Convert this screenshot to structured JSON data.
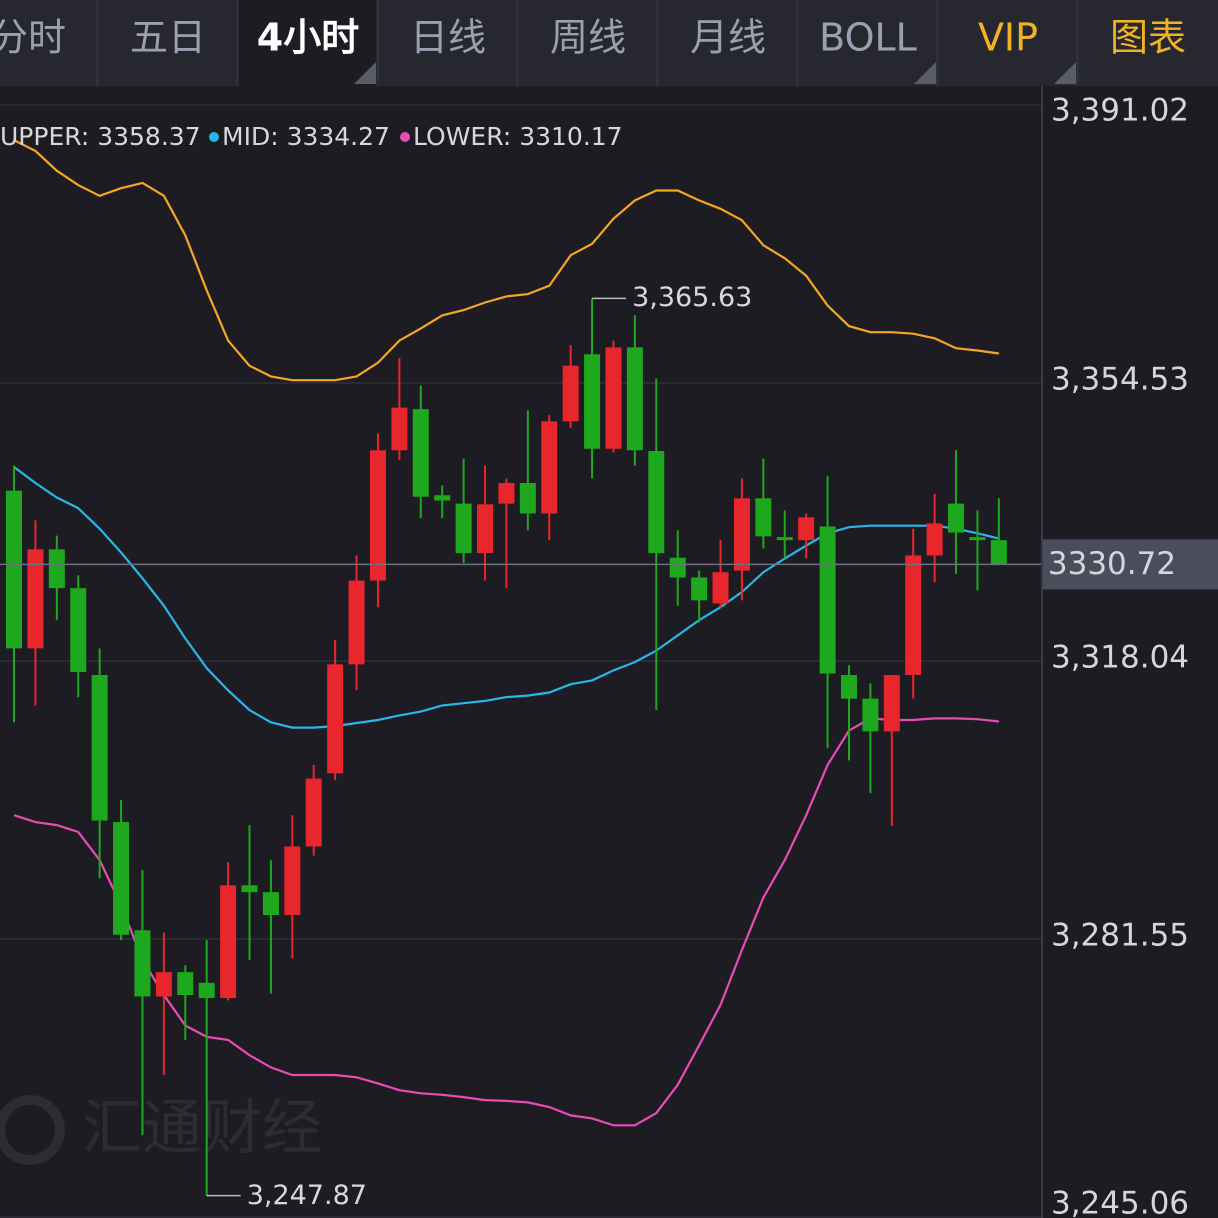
{
  "tabs": {
    "items": [
      "分时",
      "五日",
      "4小时",
      "日线",
      "周线",
      "月线",
      "BOLL",
      "VIP",
      "图表"
    ],
    "active": 2
  },
  "chart_data": {
    "type": "candlestick",
    "ylim": [
      3245.06,
      3391.02
    ],
    "yticks": [
      {
        "value": 3391.02,
        "label": "3,391.02"
      },
      {
        "value": 3354.53,
        "label": "3,354.53"
      },
      {
        "value": 3318.04,
        "label": "3,318.04"
      },
      {
        "value": 3281.55,
        "label": "3,281.55"
      },
      {
        "value": 3245.06,
        "label": "3,245.06"
      }
    ],
    "grid": true,
    "up_color": "#e8262b",
    "down_color": "#1ea81e",
    "open": [
      3340.4,
      3319.7,
      3332.7,
      3327.6,
      3316.2,
      3296.9,
      3282.7,
      3274.0,
      3277.2,
      3275.8,
      3273.8,
      3288.6,
      3287.7,
      3284.7,
      3293.7,
      3303.3,
      3317.6,
      3328.6,
      3345.7,
      3351.1,
      3339.8,
      3338.7,
      3332.2,
      3338.7,
      3341.4,
      3337.4,
      3349.5,
      3358.3,
      3345.9,
      3359.2,
      3345.6,
      3331.6,
      3329.0,
      3325.6,
      3329.9,
      3339.4,
      3334.3,
      3333.9,
      3335.7,
      3316.2,
      3313.1,
      3308.8,
      3316.2,
      3331.9,
      3338.7,
      3334.3,
      3333.9
    ],
    "high": [
      3343.7,
      3336.5,
      3334.5,
      3329.3,
      3319.7,
      3299.8,
      3290.6,
      3282.4,
      3278.1,
      3281.4,
      3291.6,
      3296.5,
      3291.9,
      3297.8,
      3304.4,
      3320.8,
      3331.9,
      3347.9,
      3357.8,
      3354.2,
      3341.1,
      3344.6,
      3343.7,
      3342.0,
      3350.9,
      3350.3,
      3359.5,
      3365.63,
      3360.1,
      3363.4,
      3355.1,
      3335.2,
      3329.9,
      3333.9,
      3342.0,
      3344.6,
      3337.8,
      3337.4,
      3342.3,
      3317.5,
      3315.1,
      3316.2,
      3335.4,
      3340.0,
      3345.7,
      3337.8,
      3339.4
    ],
    "low": [
      3310.0,
      3312.2,
      3323.4,
      3313.3,
      3289.5,
      3281.4,
      3255.8,
      3263.7,
      3268.3,
      3247.87,
      3273.5,
      3278.8,
      3274.4,
      3279.0,
      3292.5,
      3302.4,
      3314.2,
      3325.1,
      3344.4,
      3336.8,
      3336.8,
      3330.9,
      3328.6,
      3327.6,
      3335.2,
      3333.9,
      3348.6,
      3342.0,
      3345.4,
      3343.7,
      3311.6,
      3325.3,
      3323.1,
      3325.0,
      3326.0,
      3332.8,
      3331.5,
      3331.5,
      3306.6,
      3305.0,
      3300.7,
      3296.4,
      3313.1,
      3328.4,
      3329.5,
      3327.3,
      3330.6
    ],
    "close": [
      3319.7,
      3332.7,
      3327.6,
      3316.6,
      3297.1,
      3282.1,
      3274.0,
      3277.2,
      3274.2,
      3273.8,
      3288.6,
      3287.7,
      3284.7,
      3293.7,
      3302.6,
      3317.6,
      3328.6,
      3345.7,
      3351.3,
      3339.6,
      3339.1,
      3332.2,
      3338.6,
      3341.4,
      3337.4,
      3349.5,
      3356.8,
      3345.9,
      3359.2,
      3345.7,
      3332.2,
      3329.0,
      3326.0,
      3329.7,
      3339.4,
      3334.4,
      3333.9,
      3336.9,
      3316.4,
      3313.1,
      3308.8,
      3316.2,
      3331.9,
      3336.1,
      3334.9,
      3333.9,
      3330.72
    ],
    "series": [
      {
        "name": "UPPER: 3358.37",
        "color": "#f5a623",
        "values": [
          3386.4,
          3385.0,
          3382.4,
          3380.5,
          3379.1,
          3380.1,
          3380.8,
          3379.1,
          3373.9,
          3366.7,
          3360.1,
          3356.8,
          3355.4,
          3354.9,
          3354.9,
          3354.9,
          3355.4,
          3357.2,
          3360.1,
          3361.7,
          3363.4,
          3364.1,
          3365.1,
          3365.9,
          3366.2,
          3367.3,
          3371.3,
          3372.8,
          3376.1,
          3378.5,
          3379.8,
          3379.8,
          3378.5,
          3377.4,
          3375.9,
          3372.6,
          3370.9,
          3368.6,
          3364.7,
          3362.0,
          3361.2,
          3361.2,
          3361.0,
          3360.4,
          3359.1,
          3358.8,
          3358.4
        ]
      },
      {
        "name": "MID: 3334.27",
        "color": "#29b6e8",
        "values": [
          3343.5,
          3341.4,
          3339.5,
          3338.1,
          3335.4,
          3332.3,
          3328.9,
          3325.3,
          3321.0,
          3317.1,
          3314.2,
          3311.6,
          3310.0,
          3309.3,
          3309.3,
          3309.5,
          3309.9,
          3310.3,
          3310.9,
          3311.4,
          3312.2,
          3312.5,
          3312.8,
          3313.3,
          3313.5,
          3313.9,
          3315.0,
          3315.5,
          3316.8,
          3317.9,
          3319.4,
          3321.4,
          3323.4,
          3325.1,
          3327.1,
          3329.7,
          3331.5,
          3333.2,
          3334.8,
          3335.6,
          3335.8,
          3335.8,
          3335.8,
          3335.8,
          3335.4,
          3334.8,
          3334.1
        ]
      },
      {
        "name": "LOWER: 3310.17",
        "color": "#e84cb5",
        "values": [
          3297.8,
          3296.9,
          3296.5,
          3295.6,
          3291.9,
          3286.0,
          3278.8,
          3274.2,
          3270.2,
          3268.7,
          3268.3,
          3266.3,
          3264.7,
          3263.7,
          3263.7,
          3263.7,
          3263.4,
          3262.6,
          3261.7,
          3261.3,
          3261.1,
          3260.8,
          3260.4,
          3260.3,
          3260.1,
          3259.5,
          3258.4,
          3258.0,
          3257.1,
          3257.1,
          3258.7,
          3262.4,
          3267.6,
          3272.9,
          3280.1,
          3287.0,
          3291.9,
          3297.8,
          3304.4,
          3308.9,
          3310.5,
          3310.3,
          3310.3,
          3310.5,
          3310.5,
          3310.4,
          3310.1
        ]
      }
    ],
    "current_price": 3330.72,
    "annotations": [
      {
        "value": 3365.63,
        "label": "3,365.63"
      },
      {
        "value": 3247.87,
        "label": "3,247.87"
      }
    ],
    "watermark": "汇通财经"
  }
}
